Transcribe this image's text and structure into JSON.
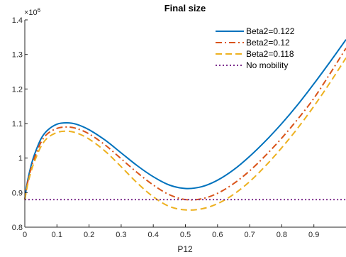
{
  "chart_data": {
    "type": "line",
    "title": "Final size",
    "xlabel": "P12",
    "ylabel": "",
    "y_exponent_label": "×10",
    "y_exponent_power": "6",
    "xlim": [
      0,
      1
    ],
    "ylim": [
      0.8,
      1.4
    ],
    "x_ticks": [
      0,
      0.1,
      0.2,
      0.3,
      0.4,
      0.5,
      0.6,
      0.7,
      0.8,
      0.9
    ],
    "x_tick_labels": [
      "0",
      "0.1",
      "0.2",
      "0.3",
      "0.4",
      "0.5",
      "0.6",
      "0.7",
      "0.8",
      "0.9"
    ],
    "y_ticks": [
      0.8,
      0.9,
      1.0,
      1.1,
      1.2,
      1.3,
      1.4
    ],
    "y_tick_labels": [
      "0.8",
      "0.9",
      "1",
      "1.1",
      "1.2",
      "1.3",
      "1.4"
    ],
    "grid": false,
    "legend_position": "top-right",
    "series": [
      {
        "name": "Beta2=0.122",
        "color": "#0072BD",
        "style": "solid",
        "x": [
          0,
          0.005,
          0.01,
          0.02,
          0.03,
          0.05,
          0.07,
          0.1,
          0.13,
          0.16,
          0.2,
          0.25,
          0.3,
          0.35,
          0.4,
          0.45,
          0.5,
          0.55,
          0.6,
          0.65,
          0.7,
          0.75,
          0.8,
          0.85,
          0.9,
          0.95,
          1.0
        ],
        "y": [
          0.88,
          0.915,
          0.94,
          0.98,
          1.01,
          1.055,
          1.08,
          1.098,
          1.102,
          1.098,
          1.082,
          1.052,
          1.015,
          0.978,
          0.946,
          0.922,
          0.912,
          0.917,
          0.936,
          0.966,
          1.005,
          1.05,
          1.1,
          1.155,
          1.215,
          1.278,
          1.343
        ]
      },
      {
        "name": "Beta2=0.12",
        "color": "#D95319",
        "style": "dash-dot",
        "x": [
          0,
          0.005,
          0.01,
          0.02,
          0.03,
          0.05,
          0.07,
          0.1,
          0.13,
          0.16,
          0.2,
          0.25,
          0.3,
          0.35,
          0.4,
          0.45,
          0.5,
          0.55,
          0.6,
          0.65,
          0.7,
          0.75,
          0.8,
          0.85,
          0.9,
          0.95,
          1.0
        ],
        "y": [
          0.88,
          0.91,
          0.935,
          0.972,
          1.0,
          1.045,
          1.07,
          1.086,
          1.09,
          1.086,
          1.07,
          1.038,
          0.998,
          0.958,
          0.922,
          0.894,
          0.88,
          0.882,
          0.898,
          0.926,
          0.963,
          1.008,
          1.058,
          1.113,
          1.173,
          1.244,
          1.318
        ]
      },
      {
        "name": "Beta2=0.118",
        "color": "#EDB120",
        "style": "dashed",
        "x": [
          0,
          0.005,
          0.01,
          0.02,
          0.03,
          0.05,
          0.07,
          0.1,
          0.13,
          0.16,
          0.2,
          0.25,
          0.3,
          0.35,
          0.4,
          0.45,
          0.5,
          0.55,
          0.6,
          0.65,
          0.7,
          0.75,
          0.8,
          0.85,
          0.9,
          0.95,
          1.0
        ],
        "y": [
          0.88,
          0.905,
          0.928,
          0.963,
          0.99,
          1.033,
          1.058,
          1.074,
          1.078,
          1.073,
          1.055,
          1.02,
          0.975,
          0.928,
          0.888,
          0.86,
          0.85,
          0.853,
          0.868,
          0.895,
          0.932,
          0.978,
          1.03,
          1.087,
          1.15,
          1.218,
          1.29
        ]
      },
      {
        "name": "No mobility",
        "color": "#7E2F8E",
        "style": "dotted",
        "x": [
          0,
          1.0
        ],
        "y": [
          0.88,
          0.88
        ]
      }
    ]
  }
}
